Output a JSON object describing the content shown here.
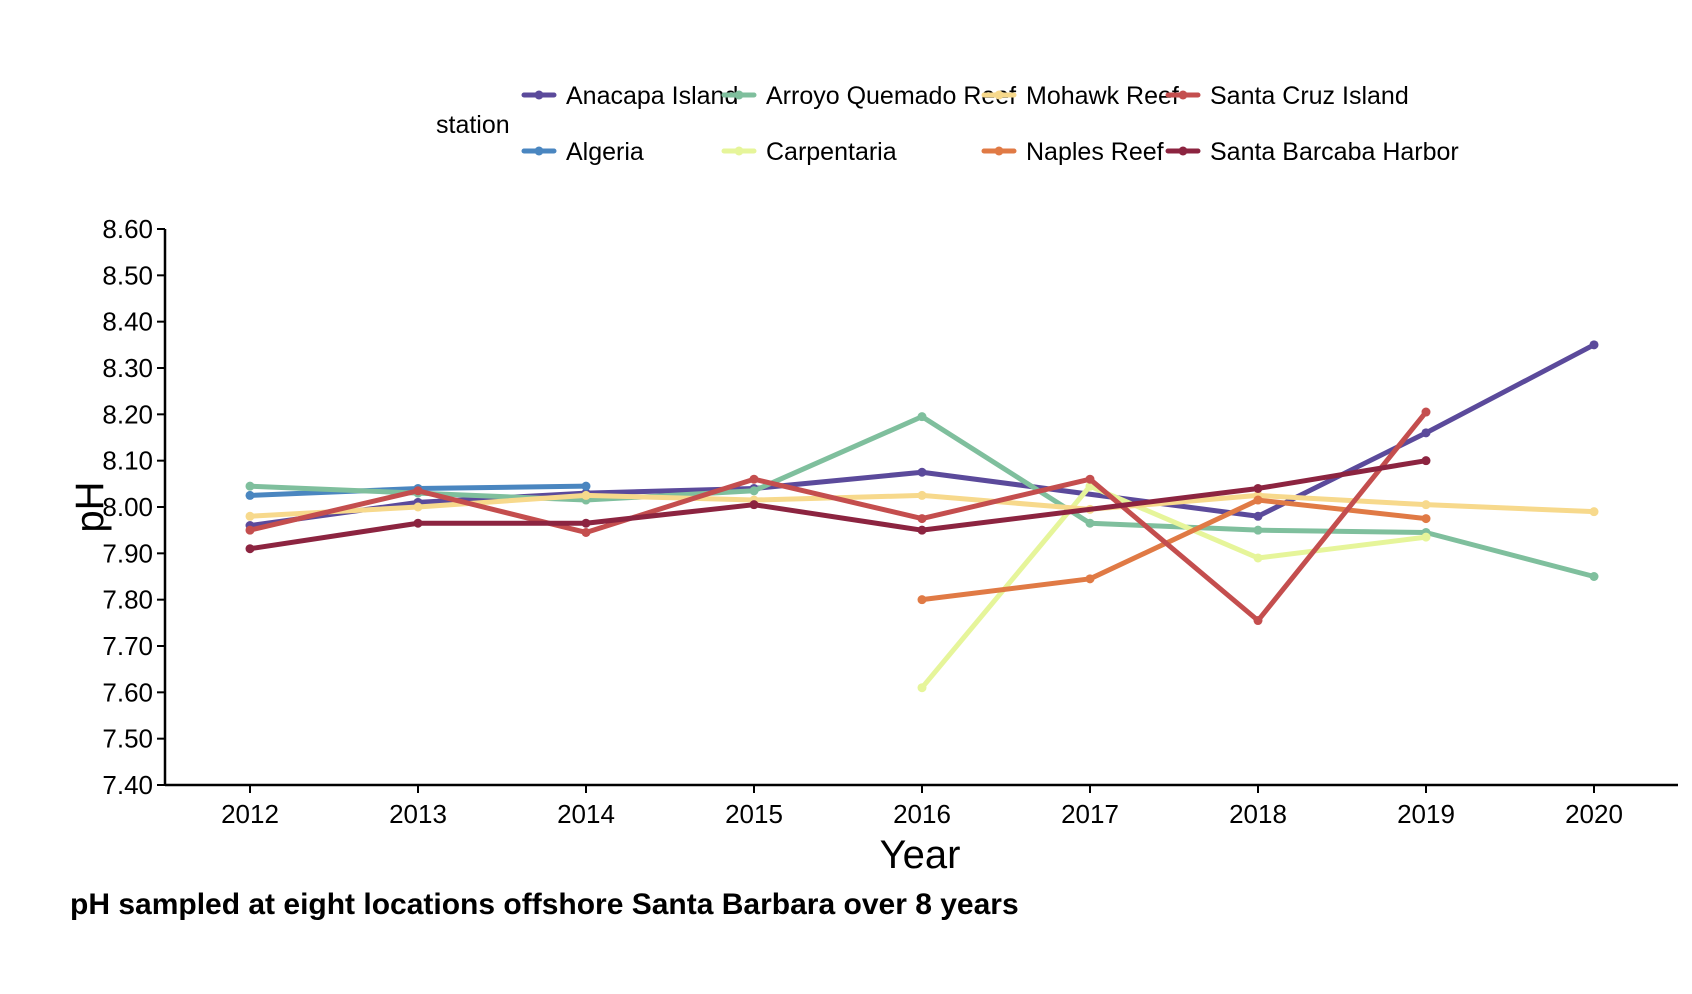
{
  "caption": "pH sampled at eight locations offshore Santa Barbara over 8 years",
  "chart_data": {
    "type": "line",
    "xlabel": "Year",
    "ylabel": "pH",
    "ylim": [
      7.4,
      8.6
    ],
    "yticks": [
      "7.40",
      "7.50",
      "7.60",
      "7.70",
      "7.80",
      "7.90",
      "8.00",
      "8.10",
      "8.20",
      "8.30",
      "8.40",
      "8.50",
      "8.60"
    ],
    "x": [
      2012,
      2013,
      2014,
      2015,
      2016,
      2017,
      2018,
      2019,
      2020
    ],
    "xtick_labels": [
      "2012",
      "2013",
      "2014",
      "2015",
      "2016",
      "2017",
      "2018",
      "2019",
      "2020"
    ],
    "legend": {
      "title": "station",
      "placement": "top"
    },
    "grid": false,
    "series": [
      {
        "name": "Anacapa Island",
        "color": "#5b4a9b",
        "points": [
          [
            2012,
            7.96
          ],
          [
            2013,
            8.01
          ],
          [
            2014,
            8.03
          ],
          [
            2015,
            8.04
          ],
          [
            2016,
            8.075
          ],
          [
            2018,
            7.98
          ],
          [
            2019,
            8.16
          ],
          [
            2020,
            8.35
          ]
        ]
      },
      {
        "name": "Algeria",
        "color": "#4a86c0",
        "points": [
          [
            2012,
            8.025
          ],
          [
            2013,
            8.04
          ],
          [
            2014,
            8.045
          ]
        ]
      },
      {
        "name": "Arroyo Quemado Reef",
        "color": "#7fbf9d",
        "points": [
          [
            2012,
            8.045
          ],
          [
            2013,
            8.03
          ],
          [
            2014,
            8.015
          ],
          [
            2015,
            8.035
          ],
          [
            2016,
            8.195
          ],
          [
            2017,
            7.965
          ],
          [
            2018,
            7.95
          ],
          [
            2019,
            7.945
          ],
          [
            2020,
            7.85
          ]
        ]
      },
      {
        "name": "Carpentaria",
        "color": "#e6f59a",
        "points": [
          [
            2016,
            7.61
          ],
          [
            2017,
            8.045
          ],
          [
            2018,
            7.89
          ],
          [
            2019,
            7.935
          ]
        ]
      },
      {
        "name": "Mohawk Reef",
        "color": "#f7d98c",
        "points": [
          [
            2012,
            7.98
          ],
          [
            2013,
            8.0
          ],
          [
            2014,
            8.025
          ],
          [
            2015,
            8.015
          ],
          [
            2016,
            8.025
          ],
          [
            2017,
            7.995
          ],
          [
            2018,
            8.025
          ],
          [
            2019,
            8.005
          ],
          [
            2020,
            7.99
          ]
        ]
      },
      {
        "name": "Naples Reef",
        "color": "#e07a45",
        "points": [
          [
            2016,
            7.8
          ],
          [
            2017,
            7.845
          ],
          [
            2018,
            8.015
          ],
          [
            2019,
            7.975
          ]
        ]
      },
      {
        "name": "Santa Cruz Island",
        "color": "#c44e4e",
        "points": [
          [
            2012,
            7.95
          ],
          [
            2013,
            8.035
          ],
          [
            2014,
            7.945
          ],
          [
            2015,
            8.06
          ],
          [
            2016,
            7.975
          ],
          [
            2017,
            8.06
          ],
          [
            2018,
            7.755
          ],
          [
            2019,
            8.205
          ]
        ]
      },
      {
        "name": "Santa Barcaba Harbor",
        "color": "#8c2440",
        "points": [
          [
            2012,
            7.91
          ],
          [
            2013,
            7.965
          ],
          [
            2014,
            7.965
          ],
          [
            2015,
            8.005
          ],
          [
            2016,
            7.95
          ],
          [
            2018,
            8.04
          ],
          [
            2019,
            8.1
          ]
        ]
      }
    ]
  }
}
